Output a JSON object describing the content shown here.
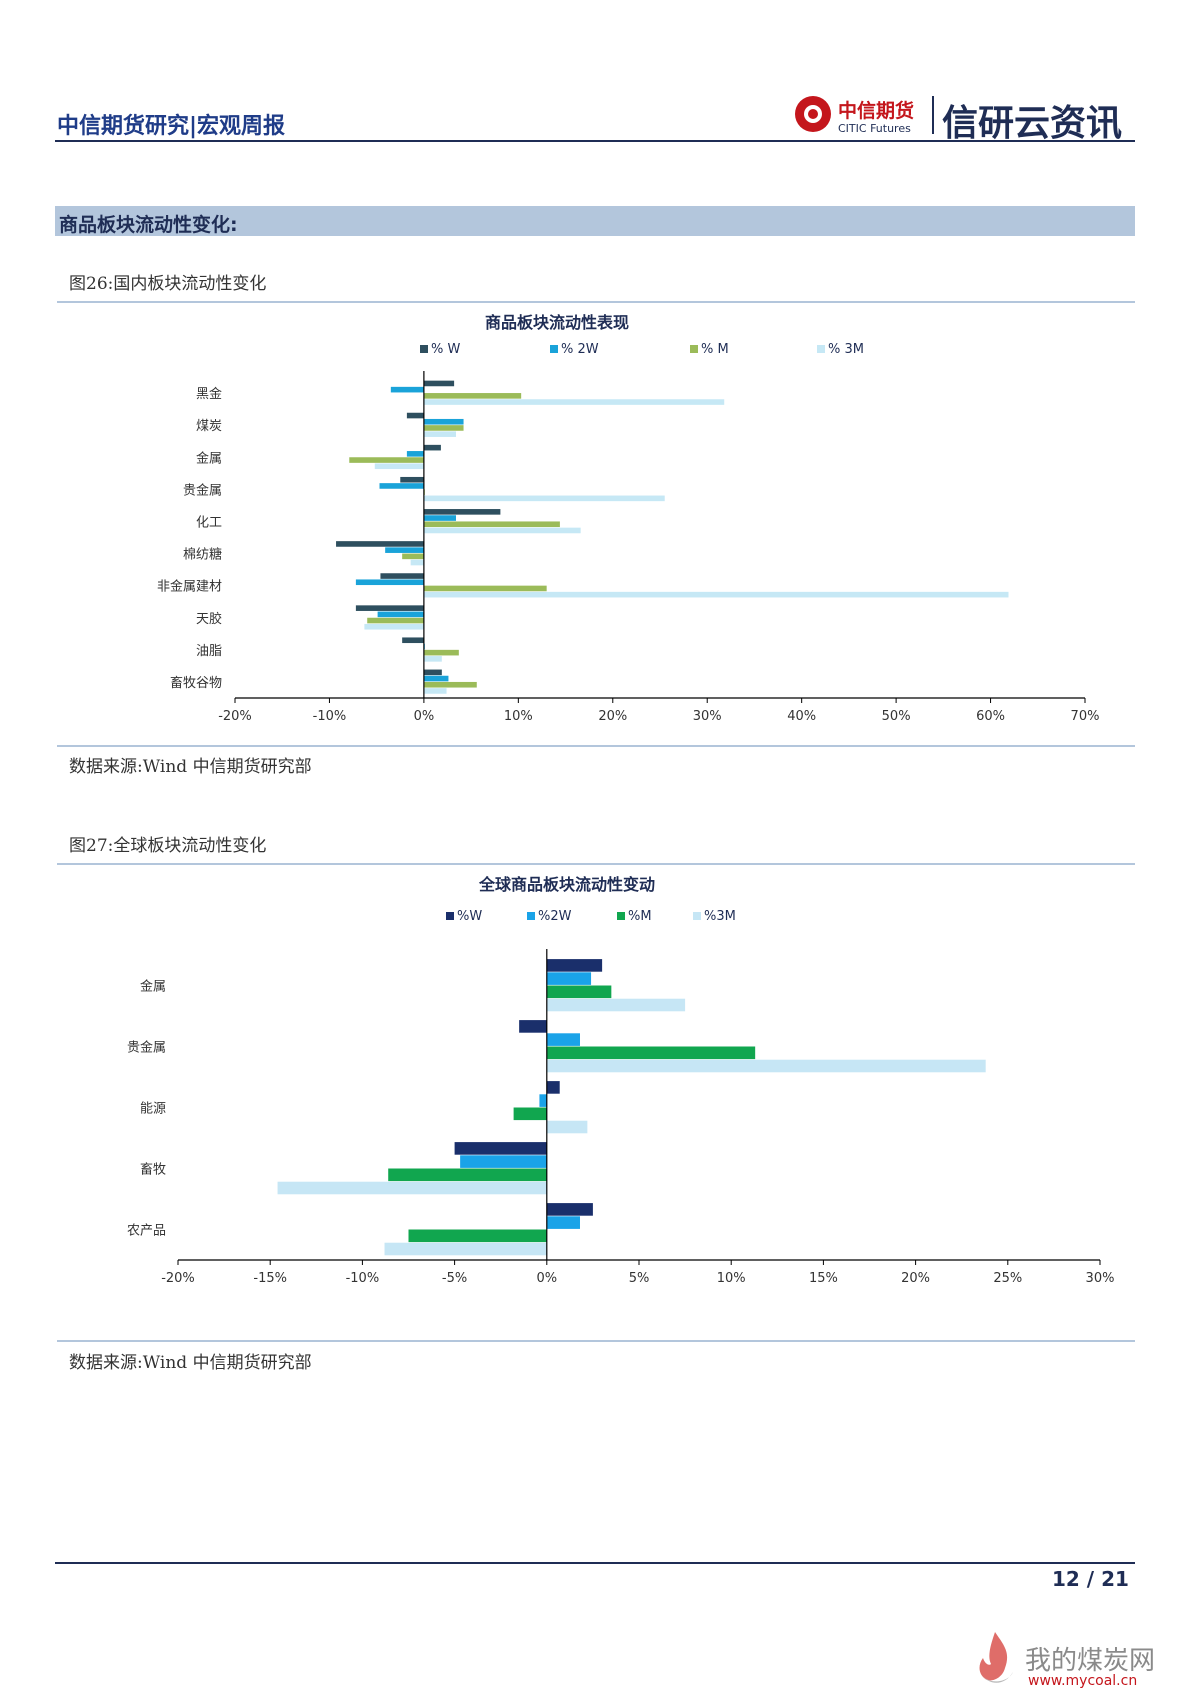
{
  "header": {
    "left_title": "中信期货研究|宏观周报",
    "brand_cn": "中信期货",
    "brand_en": "CITIC Futures",
    "brand_big": "信研云资讯"
  },
  "section": {
    "title": "商品板块流动性变化:"
  },
  "fig26": {
    "label": "图26:国内板块流动性变化",
    "source": "数据来源:Wind 中信期货研究部"
  },
  "fig27": {
    "label": "图27:全球板块流动性变化",
    "source": "数据来源:Wind 中信期货研究部"
  },
  "colors": {
    "chart1": [
      "#2e4f5f",
      "#1aa3d9",
      "#9bbb59",
      "#c6e8f5"
    ],
    "chart2": [
      "#1a2f6b",
      "#1aa3e8",
      "#11a64f",
      "#c6e6f5"
    ]
  },
  "chart_data": [
    {
      "type": "bar",
      "orientation": "horizontal",
      "title": "商品板块流动性表现",
      "categories": [
        "黑金",
        "煤炭",
        "金属",
        "贵金属",
        "化工",
        "棉纺糖",
        "非金属建材",
        "天胶",
        "油脂",
        "畜牧谷物"
      ],
      "series": [
        {
          "name": "% W",
          "values": [
            3.2,
            -1.8,
            1.8,
            -2.5,
            8.1,
            -9.3,
            -4.6,
            -7.2,
            -2.3,
            1.9
          ]
        },
        {
          "name": "% 2W",
          "values": [
            -3.5,
            4.2,
            -1.8,
            -4.7,
            3.4,
            -4.1,
            -7.2,
            -4.9,
            0.1,
            2.6
          ]
        },
        {
          "name": "% M",
          "values": [
            10.3,
            4.2,
            -7.9,
            0.1,
            14.4,
            -2.3,
            13.0,
            -6.0,
            3.7,
            5.6
          ]
        },
        {
          "name": "% 3M",
          "values": [
            31.8,
            3.4,
            -5.2,
            25.5,
            16.6,
            -1.4,
            61.9,
            -6.3,
            1.9,
            2.4
          ]
        }
      ],
      "x_ticks": [
        "-20%",
        "-10%",
        "0%",
        "10%",
        "20%",
        "30%",
        "40%",
        "50%",
        "60%",
        "70%"
      ],
      "xlim": [
        -20,
        70
      ],
      "legend": "top"
    },
    {
      "type": "bar",
      "orientation": "horizontal",
      "title": "全球商品板块流动性变动",
      "categories": [
        "金属",
        "贵金属",
        "能源",
        "畜牧",
        "农产品"
      ],
      "series": [
        {
          "name": "%W",
          "values": [
            3.0,
            -1.5,
            0.7,
            -5.0,
            2.5
          ]
        },
        {
          "name": "%2W",
          "values": [
            2.4,
            1.8,
            -0.4,
            -4.7,
            1.8
          ]
        },
        {
          "name": "%M",
          "values": [
            3.5,
            11.3,
            -1.8,
            -8.6,
            -7.5
          ]
        },
        {
          "name": "%3M",
          "values": [
            7.5,
            23.8,
            2.2,
            -14.6,
            -8.8
          ]
        }
      ],
      "x_ticks": [
        "-20%",
        "-15%",
        "-10%",
        "-5%",
        "0%",
        "5%",
        "10%",
        "15%",
        "20%",
        "25%",
        "30%"
      ],
      "xlim": [
        -20,
        30
      ],
      "legend": "top"
    }
  ],
  "footer": {
    "page": "12 / 21"
  },
  "watermark": {
    "cn": "我的煤炭网",
    "url": "www.mycoal.cn"
  }
}
